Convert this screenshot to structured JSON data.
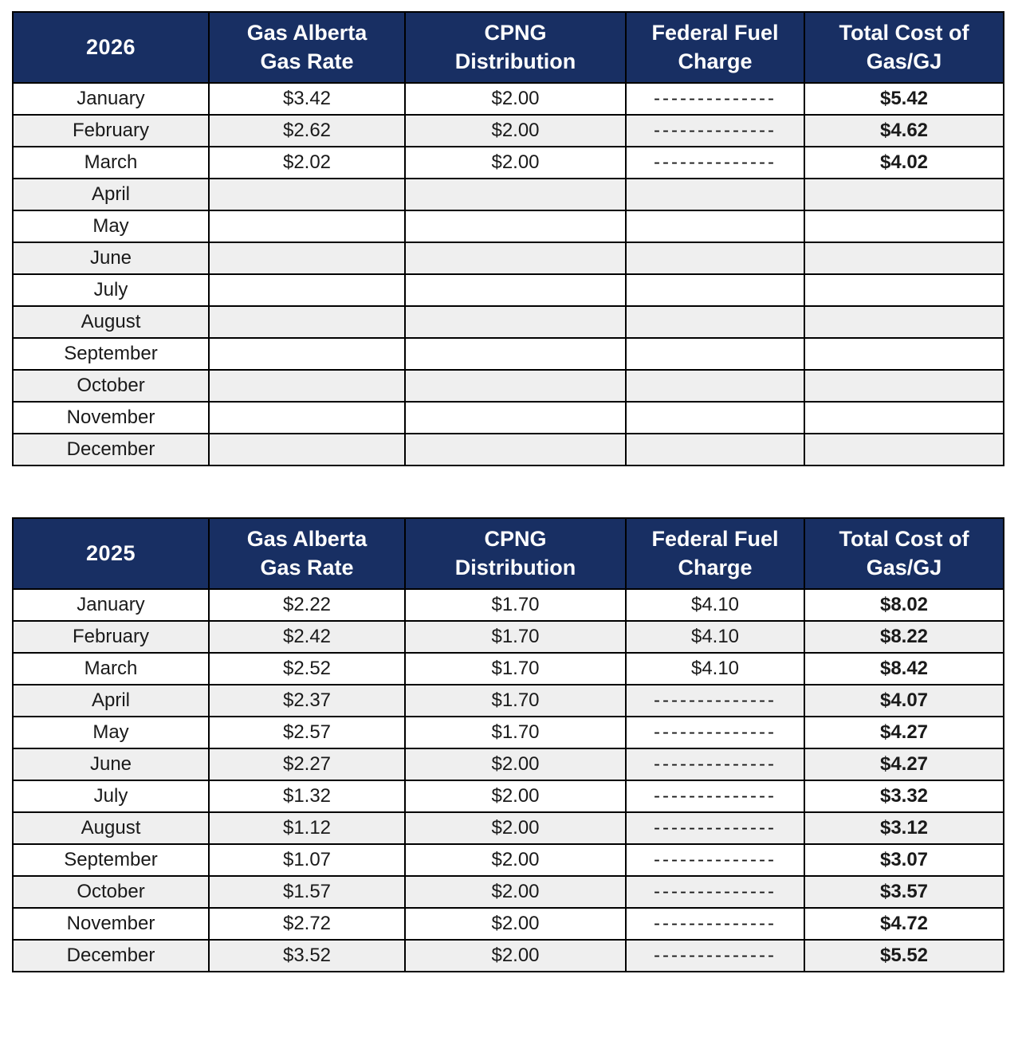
{
  "colors": {
    "header_bg": "#182f63",
    "header_text": "#ffffff",
    "row_alt_bg": "#efefef",
    "border": "#000000",
    "text": "#1a1a1a",
    "total_text": "#000000"
  },
  "tables": [
    {
      "year": "2026",
      "columns": [
        "Gas Alberta Gas Rate",
        "CPNG Distribution",
        "Federal Fuel Charge",
        "Total Cost of Gas/GJ"
      ],
      "rows": [
        {
          "month": "January",
          "gas_rate": "$3.42",
          "distribution": "$2.00",
          "fuel_charge": "--------------",
          "total": "$5.42"
        },
        {
          "month": "February",
          "gas_rate": "$2.62",
          "distribution": "$2.00",
          "fuel_charge": "--------------",
          "total": "$4.62"
        },
        {
          "month": "March",
          "gas_rate": "$2.02",
          "distribution": "$2.00",
          "fuel_charge": "--------------",
          "total": "$4.02"
        },
        {
          "month": "April",
          "gas_rate": "",
          "distribution": "",
          "fuel_charge": "",
          "total": ""
        },
        {
          "month": "May",
          "gas_rate": "",
          "distribution": "",
          "fuel_charge": "",
          "total": ""
        },
        {
          "month": "June",
          "gas_rate": "",
          "distribution": "",
          "fuel_charge": "",
          "total": ""
        },
        {
          "month": "July",
          "gas_rate": "",
          "distribution": "",
          "fuel_charge": "",
          "total": ""
        },
        {
          "month": "August",
          "gas_rate": "",
          "distribution": "",
          "fuel_charge": "",
          "total": ""
        },
        {
          "month": "September",
          "gas_rate": "",
          "distribution": "",
          "fuel_charge": "",
          "total": ""
        },
        {
          "month": "October",
          "gas_rate": "",
          "distribution": "",
          "fuel_charge": "",
          "total": ""
        },
        {
          "month": "November",
          "gas_rate": "",
          "distribution": "",
          "fuel_charge": "",
          "total": ""
        },
        {
          "month": "December",
          "gas_rate": "",
          "distribution": "",
          "fuel_charge": "",
          "total": ""
        }
      ]
    },
    {
      "year": "2025",
      "columns": [
        "Gas Alberta Gas Rate",
        "CPNG Distribution",
        "Federal Fuel Charge",
        "Total Cost of Gas/GJ"
      ],
      "rows": [
        {
          "month": "January",
          "gas_rate": "$2.22",
          "distribution": "$1.70",
          "fuel_charge": "$4.10",
          "total": "$8.02"
        },
        {
          "month": "February",
          "gas_rate": "$2.42",
          "distribution": "$1.70",
          "fuel_charge": "$4.10",
          "total": "$8.22"
        },
        {
          "month": "March",
          "gas_rate": "$2.52",
          "distribution": "$1.70",
          "fuel_charge": "$4.10",
          "total": "$8.42"
        },
        {
          "month": "April",
          "gas_rate": "$2.37",
          "distribution": "$1.70",
          "fuel_charge": "--------------",
          "total": "$4.07"
        },
        {
          "month": "May",
          "gas_rate": "$2.57",
          "distribution": "$1.70",
          "fuel_charge": "--------------",
          "total": "$4.27"
        },
        {
          "month": "June",
          "gas_rate": "$2.27",
          "distribution": "$2.00",
          "fuel_charge": "--------------",
          "total": "$4.27"
        },
        {
          "month": "July",
          "gas_rate": "$1.32",
          "distribution": "$2.00",
          "fuel_charge": "--------------",
          "total": "$3.32"
        },
        {
          "month": "August",
          "gas_rate": "$1.12",
          "distribution": "$2.00",
          "fuel_charge": "--------------",
          "total": "$3.12"
        },
        {
          "month": "September",
          "gas_rate": "$1.07",
          "distribution": "$2.00",
          "fuel_charge": "--------------",
          "total": "$3.07"
        },
        {
          "month": "October",
          "gas_rate": "$1.57",
          "distribution": "$2.00",
          "fuel_charge": "--------------",
          "total": "$3.57"
        },
        {
          "month": "November",
          "gas_rate": "$2.72",
          "distribution": "$2.00",
          "fuel_charge": "--------------",
          "total": "$4.72"
        },
        {
          "month": "December",
          "gas_rate": "$3.52",
          "distribution": "$2.00",
          "fuel_charge": "--------------",
          "total": "$5.52"
        }
      ]
    }
  ]
}
